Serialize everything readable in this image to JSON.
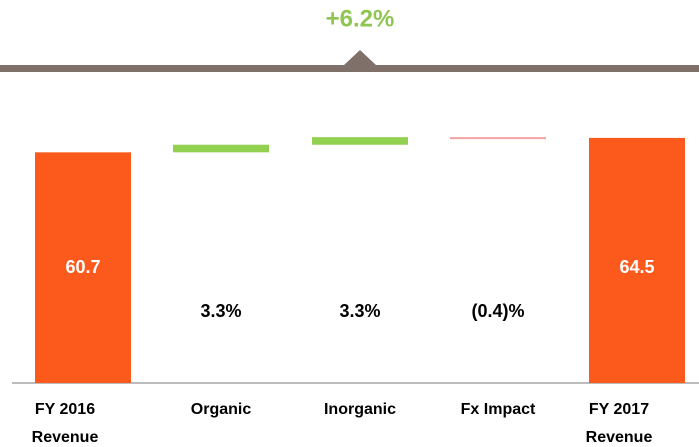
{
  "chart_data": {
    "type": "waterfall",
    "annotation": {
      "value": 6.2,
      "label": "+6.2%"
    },
    "categories": [
      "FY 2016 Revenue",
      "Organic",
      "Inorganic",
      "Fx Impact",
      "FY 2017 Revenue"
    ],
    "values": [
      60.7,
      2.0,
      2.0,
      -0.2,
      64.5
    ],
    "totals": [
      true,
      false,
      false,
      false,
      true
    ],
    "growth": [
      null,
      3.3,
      3.3,
      -0.4,
      null
    ],
    "growth_labels": [
      null,
      "3.3%",
      "3.3%",
      "(0.4)%",
      null
    ],
    "colors": {
      "total": "#fc5a1c",
      "increase": "#92d050",
      "decrease": "#f4a3a3"
    },
    "ylim": [
      0,
      70
    ]
  }
}
